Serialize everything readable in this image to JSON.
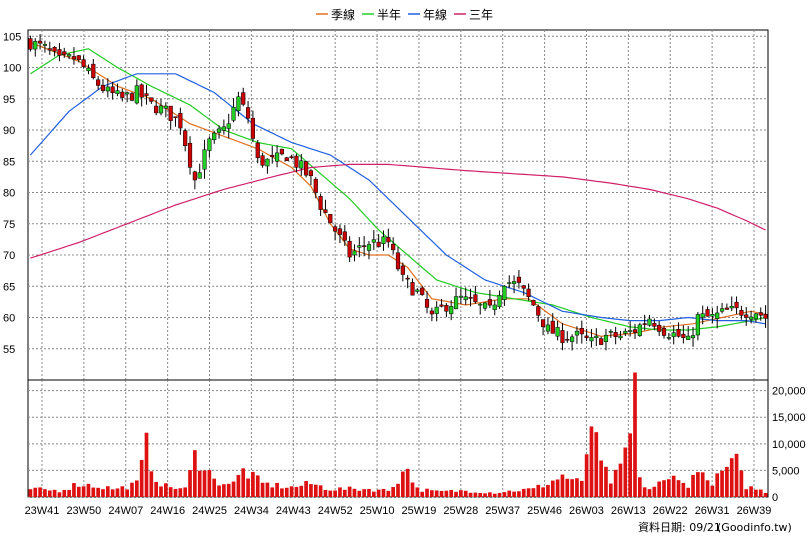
{
  "legend": [
    {
      "label": "季線",
      "color": "#e07020"
    },
    {
      "label": "半年",
      "color": "#22cc22"
    },
    {
      "label": "年線",
      "color": "#2060e0"
    },
    {
      "label": "三年",
      "color": "#d0206a"
    }
  ],
  "footer": {
    "date_label": "資料日期: 09/21",
    "source": "(Goodinfo.tw)"
  },
  "colors": {
    "up_candle": "#22cc22",
    "down_candle": "#cc0000",
    "volume_bar": "#dd1111",
    "grid": "#888888",
    "background": "#ffffff"
  },
  "chart_data": [
    {
      "type": "candlestick",
      "ylim": [
        50,
        106
      ],
      "y_ticks": [
        "105",
        "100",
        "95",
        "90",
        "85",
        "80",
        "75",
        "70",
        "65",
        "60",
        "55"
      ],
      "x_ticks": [
        "23W41",
        "23W50",
        "24W07",
        "24W16",
        "24W25",
        "24W34",
        "24W43",
        "24W52",
        "25W10",
        "25W19",
        "25W28",
        "25W37",
        "25W46",
        "26W03",
        "26W13",
        "26W22",
        "26W31",
        "26W39"
      ],
      "close_anchors": [
        [
          0,
          104
        ],
        [
          3,
          103
        ],
        [
          6,
          101
        ],
        [
          9,
          101.5
        ],
        [
          11,
          100
        ],
        [
          13,
          98
        ],
        [
          16,
          96
        ],
        [
          19,
          95
        ],
        [
          22,
          96
        ],
        [
          25,
          94
        ],
        [
          28,
          93
        ],
        [
          31,
          91
        ],
        [
          34,
          82
        ],
        [
          37,
          88
        ],
        [
          40,
          90
        ],
        [
          43,
          95
        ],
        [
          45,
          92
        ],
        [
          47,
          85
        ],
        [
          50,
          85
        ],
        [
          53,
          86
        ],
        [
          56,
          84
        ],
        [
          58,
          82
        ],
        [
          60,
          78
        ],
        [
          63,
          74
        ],
        [
          66,
          70
        ],
        [
          70,
          72
        ],
        [
          74,
          72
        ],
        [
          77,
          66
        ],
        [
          80,
          64
        ],
        [
          83,
          60
        ],
        [
          86,
          62
        ],
        [
          89,
          63
        ],
        [
          92,
          62
        ],
        [
          95,
          61
        ],
        [
          98,
          66
        ],
        [
          101,
          65
        ],
        [
          104,
          62
        ],
        [
          107,
          58
        ],
        [
          110,
          57
        ],
        [
          113,
          57
        ],
        [
          116,
          56
        ],
        [
          119,
          57
        ],
        [
          122,
          57
        ],
        [
          125,
          58
        ],
        [
          128,
          60
        ],
        [
          131,
          58
        ],
        [
          134,
          57
        ],
        [
          136,
          56
        ],
        [
          138,
          60
        ],
        [
          141,
          60
        ],
        [
          144,
          61
        ],
        [
          147,
          61
        ],
        [
          150,
          61
        ],
        [
          152,
          60
        ]
      ],
      "series": [
        {
          "name": "季線",
          "values_anchors": [
            [
              0,
              104
            ],
            [
              10,
              101
            ],
            [
              18,
              97
            ],
            [
              25,
              95
            ],
            [
              33,
              91
            ],
            [
              40,
              89
            ],
            [
              47,
              87
            ],
            [
              54,
              84
            ],
            [
              58,
              81
            ],
            [
              62,
              75
            ],
            [
              66,
              71
            ],
            [
              70,
              70
            ],
            [
              74,
              70
            ],
            [
              78,
              68
            ],
            [
              83,
              63
            ],
            [
              90,
              62
            ],
            [
              98,
              63
            ],
            [
              103,
              63
            ],
            [
              110,
              59
            ],
            [
              118,
              57
            ],
            [
              125,
              57.5
            ],
            [
              131,
              58.5
            ],
            [
              137,
              59
            ],
            [
              143,
              60
            ],
            [
              149,
              61
            ],
            [
              152,
              60.5
            ]
          ]
        },
        {
          "name": "半年",
          "values_anchors": [
            [
              0,
              99
            ],
            [
              6,
              102
            ],
            [
              12,
              103
            ],
            [
              18,
              100
            ],
            [
              25,
              97
            ],
            [
              33,
              94
            ],
            [
              40,
              90
            ],
            [
              47,
              88
            ],
            [
              54,
              87
            ],
            [
              60,
              83
            ],
            [
              66,
              79
            ],
            [
              72,
              74
            ],
            [
              78,
              70
            ],
            [
              84,
              66
            ],
            [
              92,
              64
            ],
            [
              100,
              63
            ],
            [
              108,
              62
            ],
            [
              116,
              60
            ],
            [
              124,
              58.5
            ],
            [
              130,
              58
            ],
            [
              136,
              58
            ],
            [
              142,
              58.5
            ],
            [
              149,
              59.5
            ],
            [
              152,
              60
            ]
          ]
        },
        {
          "name": "年線",
          "values_anchors": [
            [
              0,
              86
            ],
            [
              8,
              93
            ],
            [
              15,
              97
            ],
            [
              22,
              99
            ],
            [
              30,
              99
            ],
            [
              38,
              96
            ],
            [
              46,
              91
            ],
            [
              54,
              88
            ],
            [
              62,
              86
            ],
            [
              70,
              82
            ],
            [
              78,
              76
            ],
            [
              86,
              70
            ],
            [
              94,
              66
            ],
            [
              102,
              64
            ],
            [
              110,
              61
            ],
            [
              118,
              60
            ],
            [
              124,
              59.5
            ],
            [
              130,
              59.5
            ],
            [
              136,
              60
            ],
            [
              142,
              59.5
            ],
            [
              148,
              59.5
            ],
            [
              152,
              59
            ]
          ]
        },
        {
          "name": "三年",
          "values_anchors": [
            [
              0,
              69.5
            ],
            [
              10,
              72
            ],
            [
              20,
              75
            ],
            [
              30,
              78
            ],
            [
              40,
              80.5
            ],
            [
              50,
              82.5
            ],
            [
              58,
              84
            ],
            [
              66,
              84.5
            ],
            [
              74,
              84.5
            ],
            [
              82,
              84
            ],
            [
              90,
              83.5
            ],
            [
              100,
              83
            ],
            [
              110,
              82.5
            ],
            [
              120,
              81.5
            ],
            [
              128,
              80.5
            ],
            [
              136,
              79
            ],
            [
              142,
              77.5
            ],
            [
              148,
              75.5
            ],
            [
              152,
              74
            ]
          ]
        }
      ]
    },
    {
      "type": "bar",
      "ylim": [
        0,
        22000
      ],
      "y_ticks": [
        "20,000",
        "15,000",
        "10,000",
        "5,000",
        "0"
      ],
      "values_anchors": [
        [
          0,
          1500
        ],
        [
          6,
          1200
        ],
        [
          10,
          2500
        ],
        [
          14,
          2000
        ],
        [
          18,
          1500
        ],
        [
          22,
          2500
        ],
        [
          24,
          9500
        ],
        [
          26,
          3500
        ],
        [
          28,
          2000
        ],
        [
          32,
          1500
        ],
        [
          34,
          7500
        ],
        [
          36,
          6500
        ],
        [
          38,
          3000
        ],
        [
          42,
          2500
        ],
        [
          44,
          5000
        ],
        [
          48,
          2500
        ],
        [
          54,
          1800
        ],
        [
          58,
          2500
        ],
        [
          62,
          1500
        ],
        [
          66,
          1500
        ],
        [
          70,
          1500
        ],
        [
          74,
          1200
        ],
        [
          78,
          5500
        ],
        [
          80,
          1500
        ],
        [
          84,
          1000
        ],
        [
          90,
          1200
        ],
        [
          96,
          800
        ],
        [
          100,
          1200
        ],
        [
          104,
          1500
        ],
        [
          108,
          3000
        ],
        [
          110,
          4000
        ],
        [
          114,
          2500
        ],
        [
          116,
          14500
        ],
        [
          117,
          9500
        ],
        [
          118,
          6000
        ],
        [
          120,
          3000
        ],
        [
          122,
          5000
        ],
        [
          124,
          11500
        ],
        [
          125,
          21500
        ],
        [
          126,
          3000
        ],
        [
          128,
          1500
        ],
        [
          130,
          2500
        ],
        [
          132,
          3000
        ],
        [
          134,
          4500
        ],
        [
          136,
          1500
        ],
        [
          138,
          6500
        ],
        [
          140,
          2500
        ],
        [
          142,
          3500
        ],
        [
          144,
          5500
        ],
        [
          146,
          6500
        ],
        [
          147,
          4000
        ],
        [
          148,
          2000
        ],
        [
          150,
          1500
        ],
        [
          152,
          1000
        ]
      ]
    }
  ]
}
